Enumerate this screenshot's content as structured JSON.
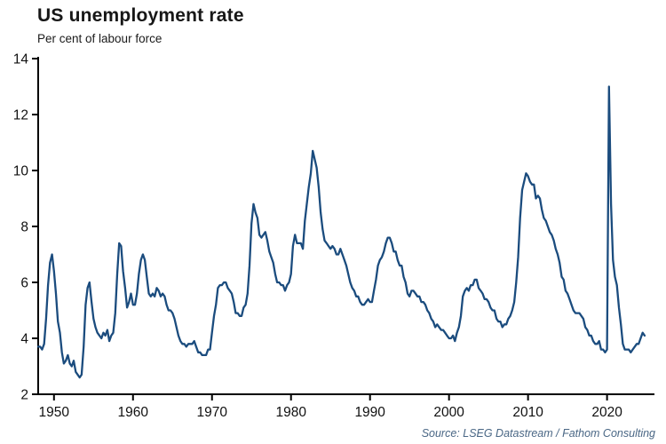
{
  "header": {
    "title": "US unemployment rate",
    "subtitle": "Per cent of labour force"
  },
  "footer": {
    "source": "Source: LSEG Datastream / Fathom Consulting"
  },
  "chart_data": {
    "type": "line",
    "title": "US unemployment rate",
    "subtitle": "Per cent of labour force",
    "xlabel": "",
    "ylabel": "Per cent of labour force",
    "grid": false,
    "legend": "none",
    "ylim": [
      2,
      14
    ],
    "yticks": [
      2,
      4,
      6,
      8,
      10,
      12,
      14
    ],
    "xlim": [
      1948,
      2026
    ],
    "xticks": [
      1950,
      1960,
      1970,
      1980,
      1990,
      2000,
      2010,
      2020
    ],
    "line_color": "#1b4c7e",
    "axis_color": "#000000",
    "text_color": "#111111",
    "series": [
      {
        "name": "US unemployment rate",
        "points": [
          [
            1948,
            3.7
          ],
          [
            1948.25,
            3.7
          ],
          [
            1948.5,
            3.6
          ],
          [
            1948.75,
            3.8
          ],
          [
            1949,
            4.7
          ],
          [
            1949.25,
            5.9
          ],
          [
            1949.5,
            6.7
          ],
          [
            1949.75,
            7.0
          ],
          [
            1950,
            6.4
          ],
          [
            1950.25,
            5.6
          ],
          [
            1950.5,
            4.6
          ],
          [
            1950.75,
            4.2
          ],
          [
            1951,
            3.5
          ],
          [
            1951.25,
            3.1
          ],
          [
            1951.5,
            3.2
          ],
          [
            1951.75,
            3.4
          ],
          [
            1952,
            3.1
          ],
          [
            1952.25,
            3.0
          ],
          [
            1952.5,
            3.2
          ],
          [
            1952.75,
            2.8
          ],
          [
            1953,
            2.7
          ],
          [
            1953.25,
            2.6
          ],
          [
            1953.5,
            2.7
          ],
          [
            1953.75,
            3.7
          ],
          [
            1954,
            5.2
          ],
          [
            1954.25,
            5.8
          ],
          [
            1954.5,
            6.0
          ],
          [
            1954.75,
            5.3
          ],
          [
            1955,
            4.7
          ],
          [
            1955.25,
            4.4
          ],
          [
            1955.5,
            4.2
          ],
          [
            1955.75,
            4.1
          ],
          [
            1956,
            4.0
          ],
          [
            1956.25,
            4.2
          ],
          [
            1956.5,
            4.1
          ],
          [
            1956.75,
            4.3
          ],
          [
            1957,
            3.9
          ],
          [
            1957.25,
            4.1
          ],
          [
            1957.5,
            4.2
          ],
          [
            1957.75,
            4.9
          ],
          [
            1958,
            6.3
          ],
          [
            1958.25,
            7.4
          ],
          [
            1958.5,
            7.3
          ],
          [
            1958.75,
            6.4
          ],
          [
            1959,
            5.8
          ],
          [
            1959.25,
            5.1
          ],
          [
            1959.5,
            5.3
          ],
          [
            1959.75,
            5.6
          ],
          [
            1960,
            5.2
          ],
          [
            1960.25,
            5.2
          ],
          [
            1960.5,
            5.6
          ],
          [
            1960.75,
            6.3
          ],
          [
            1961,
            6.8
          ],
          [
            1961.25,
            7.0
          ],
          [
            1961.5,
            6.8
          ],
          [
            1961.75,
            6.2
          ],
          [
            1962,
            5.6
          ],
          [
            1962.25,
            5.5
          ],
          [
            1962.5,
            5.6
          ],
          [
            1962.75,
            5.5
          ],
          [
            1963,
            5.8
          ],
          [
            1963.25,
            5.7
          ],
          [
            1963.5,
            5.5
          ],
          [
            1963.75,
            5.6
          ],
          [
            1964,
            5.5
          ],
          [
            1964.25,
            5.2
          ],
          [
            1964.5,
            5.0
          ],
          [
            1964.75,
            5.0
          ],
          [
            1965,
            4.9
          ],
          [
            1965.25,
            4.7
          ],
          [
            1965.5,
            4.4
          ],
          [
            1965.75,
            4.1
          ],
          [
            1966,
            3.9
          ],
          [
            1966.25,
            3.8
          ],
          [
            1966.5,
            3.8
          ],
          [
            1966.75,
            3.7
          ],
          [
            1967,
            3.8
          ],
          [
            1967.25,
            3.8
          ],
          [
            1967.5,
            3.8
          ],
          [
            1967.75,
            3.9
          ],
          [
            1968,
            3.7
          ],
          [
            1968.25,
            3.5
          ],
          [
            1968.5,
            3.5
          ],
          [
            1968.75,
            3.4
          ],
          [
            1969,
            3.4
          ],
          [
            1969.25,
            3.4
          ],
          [
            1969.5,
            3.6
          ],
          [
            1969.75,
            3.6
          ],
          [
            1970,
            4.2
          ],
          [
            1970.25,
            4.8
          ],
          [
            1970.5,
            5.2
          ],
          [
            1970.75,
            5.8
          ],
          [
            1971,
            5.9
          ],
          [
            1971.25,
            5.9
          ],
          [
            1971.5,
            6.0
          ],
          [
            1971.75,
            6.0
          ],
          [
            1972,
            5.8
          ],
          [
            1972.25,
            5.7
          ],
          [
            1972.5,
            5.6
          ],
          [
            1972.75,
            5.3
          ],
          [
            1973,
            4.9
          ],
          [
            1973.25,
            4.9
          ],
          [
            1973.5,
            4.8
          ],
          [
            1973.75,
            4.8
          ],
          [
            1974,
            5.1
          ],
          [
            1974.25,
            5.2
          ],
          [
            1974.5,
            5.6
          ],
          [
            1974.75,
            6.6
          ],
          [
            1975,
            8.1
          ],
          [
            1975.25,
            8.8
          ],
          [
            1975.5,
            8.5
          ],
          [
            1975.75,
            8.3
          ],
          [
            1976,
            7.7
          ],
          [
            1976.25,
            7.6
          ],
          [
            1976.5,
            7.7
          ],
          [
            1976.75,
            7.8
          ],
          [
            1977,
            7.5
          ],
          [
            1977.25,
            7.1
          ],
          [
            1977.5,
            6.9
          ],
          [
            1977.75,
            6.7
          ],
          [
            1978,
            6.3
          ],
          [
            1978.25,
            6.0
          ],
          [
            1978.5,
            6.0
          ],
          [
            1978.75,
            5.9
          ],
          [
            1979,
            5.9
          ],
          [
            1979.25,
            5.7
          ],
          [
            1979.5,
            5.9
          ],
          [
            1979.75,
            6.0
          ],
          [
            1980,
            6.3
          ],
          [
            1980.25,
            7.3
          ],
          [
            1980.5,
            7.7
          ],
          [
            1980.75,
            7.4
          ],
          [
            1981,
            7.4
          ],
          [
            1981.25,
            7.4
          ],
          [
            1981.5,
            7.2
          ],
          [
            1981.75,
            8.2
          ],
          [
            1982,
            8.8
          ],
          [
            1982.25,
            9.4
          ],
          [
            1982.5,
            9.9
          ],
          [
            1982.75,
            10.7
          ],
          [
            1983,
            10.4
          ],
          [
            1983.25,
            10.1
          ],
          [
            1983.5,
            9.4
          ],
          [
            1983.75,
            8.5
          ],
          [
            1984,
            7.9
          ],
          [
            1984.25,
            7.5
          ],
          [
            1984.5,
            7.4
          ],
          [
            1984.75,
            7.3
          ],
          [
            1985,
            7.2
          ],
          [
            1985.25,
            7.3
          ],
          [
            1985.5,
            7.2
          ],
          [
            1985.75,
            7.0
          ],
          [
            1986,
            7.0
          ],
          [
            1986.25,
            7.2
          ],
          [
            1986.5,
            7.0
          ],
          [
            1986.75,
            6.8
          ],
          [
            1987,
            6.6
          ],
          [
            1987.25,
            6.3
          ],
          [
            1987.5,
            6.0
          ],
          [
            1987.75,
            5.8
          ],
          [
            1988,
            5.7
          ],
          [
            1988.25,
            5.5
          ],
          [
            1988.5,
            5.5
          ],
          [
            1988.75,
            5.3
          ],
          [
            1989,
            5.2
          ],
          [
            1989.25,
            5.2
          ],
          [
            1989.5,
            5.3
          ],
          [
            1989.75,
            5.4
          ],
          [
            1990,
            5.3
          ],
          [
            1990.25,
            5.3
          ],
          [
            1990.5,
            5.7
          ],
          [
            1990.75,
            6.1
          ],
          [
            1991,
            6.6
          ],
          [
            1991.25,
            6.8
          ],
          [
            1991.5,
            6.9
          ],
          [
            1991.75,
            7.1
          ],
          [
            1992,
            7.4
          ],
          [
            1992.25,
            7.6
          ],
          [
            1992.5,
            7.6
          ],
          [
            1992.75,
            7.4
          ],
          [
            1993,
            7.1
          ],
          [
            1993.25,
            7.1
          ],
          [
            1993.5,
            6.8
          ],
          [
            1993.75,
            6.6
          ],
          [
            1994,
            6.6
          ],
          [
            1994.25,
            6.2
          ],
          [
            1994.5,
            6.0
          ],
          [
            1994.75,
            5.6
          ],
          [
            1995,
            5.5
          ],
          [
            1995.25,
            5.7
          ],
          [
            1995.5,
            5.7
          ],
          [
            1995.75,
            5.6
          ],
          [
            1996,
            5.5
          ],
          [
            1996.25,
            5.5
          ],
          [
            1996.5,
            5.3
          ],
          [
            1996.75,
            5.3
          ],
          [
            1997,
            5.2
          ],
          [
            1997.25,
            5.0
          ],
          [
            1997.5,
            4.9
          ],
          [
            1997.75,
            4.7
          ],
          [
            1998,
            4.6
          ],
          [
            1998.25,
            4.4
          ],
          [
            1998.5,
            4.5
          ],
          [
            1998.75,
            4.4
          ],
          [
            1999,
            4.3
          ],
          [
            1999.25,
            4.3
          ],
          [
            1999.5,
            4.2
          ],
          [
            1999.75,
            4.1
          ],
          [
            2000,
            4.0
          ],
          [
            2000.25,
            4.0
          ],
          [
            2000.5,
            4.1
          ],
          [
            2000.75,
            3.9
          ],
          [
            2001,
            4.2
          ],
          [
            2001.25,
            4.4
          ],
          [
            2001.5,
            4.8
          ],
          [
            2001.75,
            5.5
          ],
          [
            2002,
            5.7
          ],
          [
            2002.25,
            5.8
          ],
          [
            2002.5,
            5.7
          ],
          [
            2002.75,
            5.9
          ],
          [
            2003,
            5.9
          ],
          [
            2003.25,
            6.1
          ],
          [
            2003.5,
            6.1
          ],
          [
            2003.75,
            5.8
          ],
          [
            2004,
            5.7
          ],
          [
            2004.25,
            5.6
          ],
          [
            2004.5,
            5.4
          ],
          [
            2004.75,
            5.4
          ],
          [
            2005,
            5.3
          ],
          [
            2005.25,
            5.1
          ],
          [
            2005.5,
            5.0
          ],
          [
            2005.75,
            5.0
          ],
          [
            2006,
            4.7
          ],
          [
            2006.25,
            4.6
          ],
          [
            2006.5,
            4.6
          ],
          [
            2006.75,
            4.4
          ],
          [
            2007,
            4.5
          ],
          [
            2007.25,
            4.5
          ],
          [
            2007.5,
            4.7
          ],
          [
            2007.75,
            4.8
          ],
          [
            2008,
            5.0
          ],
          [
            2008.25,
            5.3
          ],
          [
            2008.5,
            6.0
          ],
          [
            2008.75,
            6.9
          ],
          [
            2009,
            8.3
          ],
          [
            2009.25,
            9.3
          ],
          [
            2009.5,
            9.6
          ],
          [
            2009.75,
            9.9
          ],
          [
            2010,
            9.8
          ],
          [
            2010.25,
            9.6
          ],
          [
            2010.5,
            9.5
          ],
          [
            2010.75,
            9.5
          ],
          [
            2011,
            9.0
          ],
          [
            2011.25,
            9.1
          ],
          [
            2011.5,
            9.0
          ],
          [
            2011.75,
            8.6
          ],
          [
            2012,
            8.3
          ],
          [
            2012.25,
            8.2
          ],
          [
            2012.5,
            8.0
          ],
          [
            2012.75,
            7.8
          ],
          [
            2013,
            7.7
          ],
          [
            2013.25,
            7.5
          ],
          [
            2013.5,
            7.2
          ],
          [
            2013.75,
            7.0
          ],
          [
            2014,
            6.7
          ],
          [
            2014.25,
            6.2
          ],
          [
            2014.5,
            6.1
          ],
          [
            2014.75,
            5.7
          ],
          [
            2015,
            5.6
          ],
          [
            2015.25,
            5.4
          ],
          [
            2015.5,
            5.2
          ],
          [
            2015.75,
            5.0
          ],
          [
            2016,
            4.9
          ],
          [
            2016.25,
            4.9
          ],
          [
            2016.5,
            4.9
          ],
          [
            2016.75,
            4.8
          ],
          [
            2017,
            4.7
          ],
          [
            2017.25,
            4.4
          ],
          [
            2017.5,
            4.3
          ],
          [
            2017.75,
            4.1
          ],
          [
            2018,
            4.1
          ],
          [
            2018.25,
            3.9
          ],
          [
            2018.5,
            3.8
          ],
          [
            2018.75,
            3.8
          ],
          [
            2019,
            3.9
          ],
          [
            2019.25,
            3.6
          ],
          [
            2019.5,
            3.6
          ],
          [
            2019.75,
            3.5
          ],
          [
            2020,
            3.6
          ],
          [
            2020.25,
            13.0
          ],
          [
            2020.5,
            8.8
          ],
          [
            2020.75,
            6.8
          ],
          [
            2021,
            6.2
          ],
          [
            2021.25,
            5.9
          ],
          [
            2021.5,
            5.1
          ],
          [
            2021.75,
            4.5
          ],
          [
            2022,
            3.8
          ],
          [
            2022.25,
            3.6
          ],
          [
            2022.5,
            3.6
          ],
          [
            2022.75,
            3.6
          ],
          [
            2023,
            3.5
          ],
          [
            2023.25,
            3.6
          ],
          [
            2023.5,
            3.7
          ],
          [
            2023.75,
            3.8
          ],
          [
            2024,
            3.8
          ],
          [
            2024.25,
            4.0
          ],
          [
            2024.5,
            4.2
          ],
          [
            2024.75,
            4.1
          ]
        ]
      }
    ]
  }
}
